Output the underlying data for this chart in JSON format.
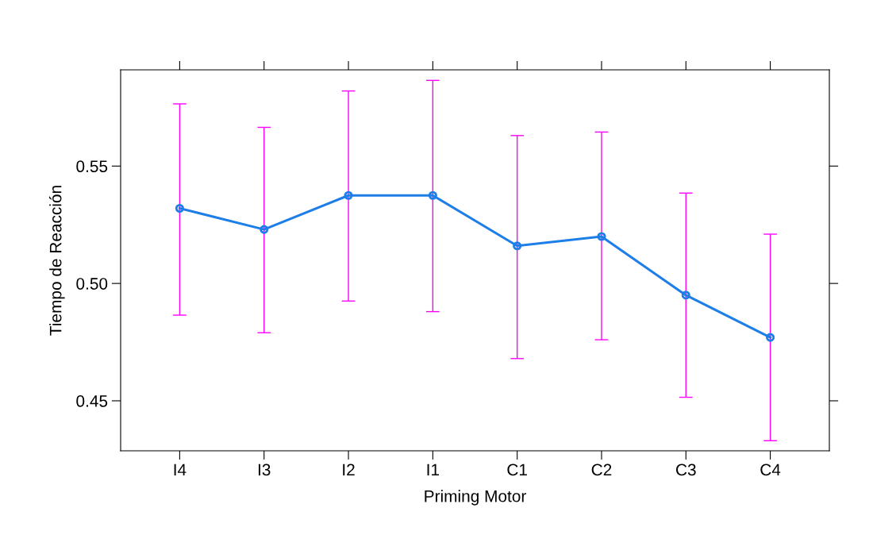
{
  "chart_data": {
    "type": "line",
    "xlabel": "Priming Motor",
    "ylabel": "Tiempo de Reacción",
    "categories": [
      "I4",
      "I3",
      "I2",
      "I1",
      "C1",
      "C2",
      "C3",
      "C4"
    ],
    "series": [
      {
        "color": "#1e7ee8",
        "values": [
          0.532,
          0.523,
          0.5375,
          0.5375,
          0.516,
          0.52,
          0.495,
          0.477
        ],
        "errors": [
          [
            0.4865,
            0.5765
          ],
          [
            0.479,
            0.5665
          ],
          [
            0.4925,
            0.582
          ],
          [
            0.488,
            0.5865
          ],
          [
            0.468,
            0.563
          ],
          [
            0.476,
            0.5645
          ],
          [
            0.4515,
            0.5385
          ],
          [
            0.433,
            0.521
          ]
        ]
      }
    ],
    "ylim": [
      0.4287,
      0.591
    ],
    "yticks": [
      0.45,
      {
        "value": 0.5,
        "label": "0.50"
      },
      0.55
    ],
    "grid": false,
    "marker": "circle",
    "line_style": "solid"
  }
}
